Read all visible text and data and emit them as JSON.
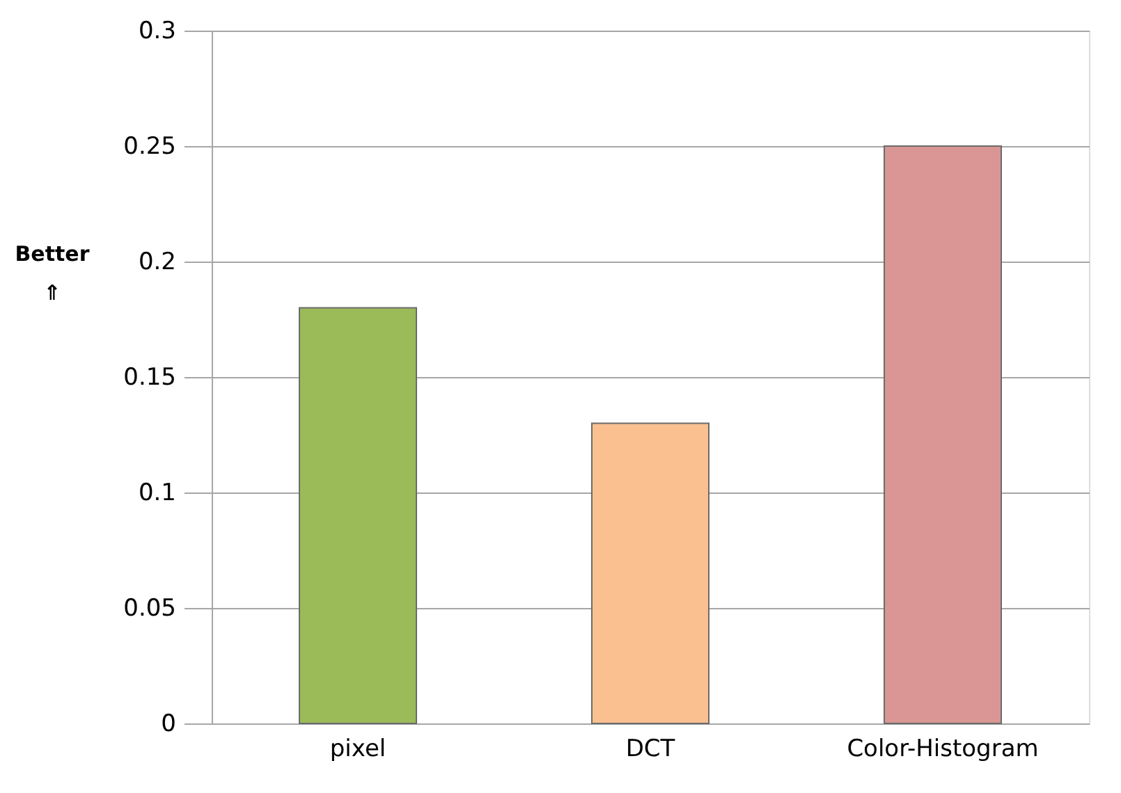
{
  "chart_data": {
    "type": "bar",
    "ylabel": "Better ⇑",
    "categories": [
      "pixel",
      "DCT",
      "Color-Histogram"
    ],
    "values": [
      0.18,
      0.13,
      0.25
    ],
    "colors": [
      "#9bbb59",
      "#fac090",
      "#d99694"
    ],
    "ylim": [
      0,
      0.3
    ],
    "yticks": [
      0,
      0.05,
      0.1,
      0.15,
      0.2,
      0.25,
      0.3
    ],
    "grid": "y"
  }
}
